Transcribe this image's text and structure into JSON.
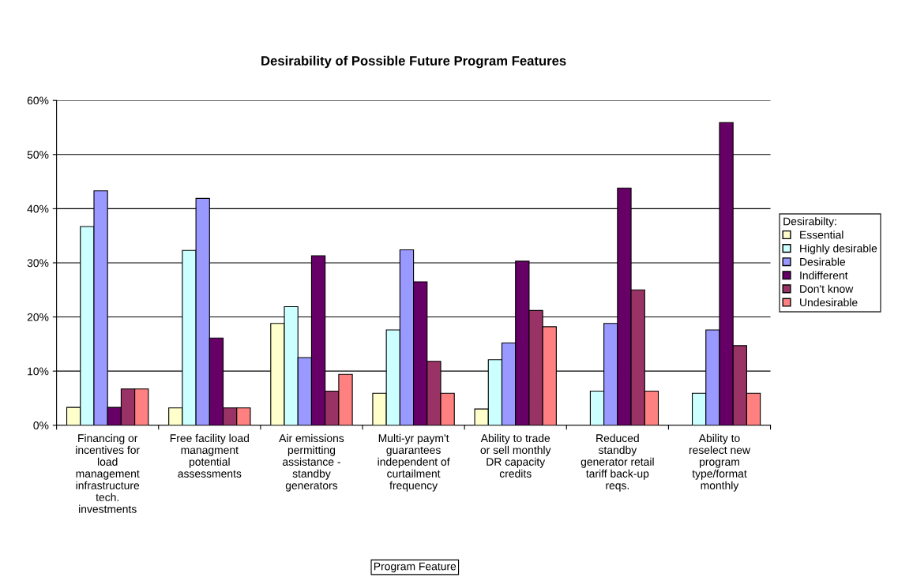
{
  "chart_data": {
    "type": "bar",
    "title": "Desirability of Possible Future Program Features",
    "xlabel": "Program Feature",
    "legend_title": "Desirabilty:",
    "categories": [
      "Financing or\nincentives for\nload\nmanagement\ninfrastructure\ntech.\ninvestments",
      "Free facility load\nmanagment\npotential\nassessments",
      "Air emissions\npermitting\nassistance -\nstandby\ngenerators",
      "Multi-yr paym't\nguarantees\nindependent of\ncurtailment\nfrequency",
      "Ability to trade\nor sell monthly\nDR capacity\ncredits",
      "Reduced\nstandby\ngenerator retail\ntariff back-up\nreqs.",
      "Ability to\nreselect new\nprogram\ntype/format\nmonthly"
    ],
    "series": [
      {
        "name": "Essential",
        "color": "#ffffcc",
        "values": [
          3.3,
          3.2,
          18.8,
          5.9,
          3.0,
          null,
          null
        ]
      },
      {
        "name": "Highly desirable",
        "color": "#ccffff",
        "values": [
          36.7,
          32.3,
          21.9,
          17.6,
          12.1,
          6.3,
          5.9
        ]
      },
      {
        "name": "Desirable",
        "color": "#9999ff",
        "values": [
          43.3,
          41.9,
          12.5,
          32.4,
          15.2,
          18.8,
          17.6
        ]
      },
      {
        "name": "Indifferent",
        "color": "#660066",
        "values": [
          3.3,
          16.1,
          31.3,
          26.5,
          30.3,
          43.8,
          55.9
        ]
      },
      {
        "name": "Don't know",
        "color": "#993366",
        "values": [
          6.7,
          3.2,
          6.3,
          11.8,
          21.2,
          25.0,
          14.7
        ]
      },
      {
        "name": "Undesirable",
        "color": "#ff8080",
        "values": [
          6.7,
          3.2,
          9.4,
          5.9,
          18.2,
          6.3,
          5.9
        ]
      }
    ],
    "ylim": [
      0,
      60
    ],
    "yticks": [
      {
        "value": 0,
        "label": "0%"
      },
      {
        "value": 10,
        "label": "10%"
      },
      {
        "value": 20,
        "label": "20%"
      },
      {
        "value": 30,
        "label": "30%"
      },
      {
        "value": 40,
        "label": "40%"
      },
      {
        "value": 50,
        "label": "50%"
      },
      {
        "value": 60,
        "label": "60%"
      }
    ],
    "grid": "y",
    "legend": "right"
  }
}
